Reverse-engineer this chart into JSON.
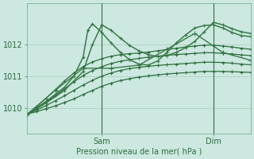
{
  "xlabel": "Pression niveau de la mer( hPa )",
  "bg_color": "#cce8e0",
  "grid_color": "#a8ccbc",
  "line_color_dark": "#2d6e3e",
  "line_color_mid": "#3a7a4a",
  "ylim": [
    1009.2,
    1013.3
  ],
  "xlim": [
    0,
    48
  ],
  "x_ticks": [
    16,
    40
  ],
  "x_tick_labels": [
    "Sam",
    "Dim"
  ],
  "y_ticks": [
    1010,
    1011,
    1012
  ],
  "vlines": [
    16,
    40
  ],
  "series": [
    {
      "x": [
        0,
        2,
        4,
        6,
        8,
        10,
        12,
        14,
        16,
        18,
        20,
        22,
        24,
        26,
        28,
        30,
        32,
        34,
        36,
        38,
        40,
        42,
        44,
        46,
        48
      ],
      "y": [
        1009.8,
        1009.88,
        1009.97,
        1010.06,
        1010.17,
        1010.28,
        1010.42,
        1010.55,
        1010.68,
        1010.78,
        1010.86,
        1010.92,
        1010.97,
        1011.01,
        1011.04,
        1011.07,
        1011.09,
        1011.11,
        1011.13,
        1011.15,
        1011.15,
        1011.15,
        1011.14,
        1011.13,
        1011.12
      ],
      "lw": 0.9,
      "dense": true
    },
    {
      "x": [
        0,
        2,
        4,
        6,
        8,
        10,
        12,
        14,
        16,
        18,
        20,
        22,
        24,
        26,
        28,
        30,
        32,
        34,
        36,
        38,
        40,
        42,
        44,
        46,
        48
      ],
      "y": [
        1009.8,
        1009.93,
        1010.07,
        1010.22,
        1010.38,
        1010.55,
        1010.72,
        1010.87,
        1011.0,
        1011.1,
        1011.18,
        1011.24,
        1011.28,
        1011.31,
        1011.34,
        1011.36,
        1011.38,
        1011.4,
        1011.42,
        1011.44,
        1011.44,
        1011.43,
        1011.41,
        1011.38,
        1011.36
      ],
      "lw": 0.9,
      "dense": true
    },
    {
      "x": [
        0,
        2,
        4,
        6,
        8,
        10,
        12,
        14,
        16,
        18,
        20,
        22,
        24,
        26,
        28,
        30,
        32,
        34,
        36,
        38,
        40,
        42,
        44,
        46,
        48
      ],
      "y": [
        1009.8,
        1009.98,
        1010.18,
        1010.38,
        1010.6,
        1010.82,
        1011.02,
        1011.18,
        1011.3,
        1011.4,
        1011.47,
        1011.52,
        1011.56,
        1011.6,
        1011.63,
        1011.66,
        1011.68,
        1011.7,
        1011.72,
        1011.74,
        1011.74,
        1011.72,
        1011.7,
        1011.67,
        1011.65
      ],
      "lw": 0.9,
      "dense": true
    },
    {
      "x": [
        0,
        2,
        4,
        6,
        8,
        10,
        12,
        14,
        16,
        18,
        20,
        22,
        24,
        26,
        28,
        30,
        32,
        34,
        36,
        38,
        40,
        42,
        44,
        46,
        48
      ],
      "y": [
        1009.8,
        1010.04,
        1010.3,
        1010.57,
        1010.85,
        1011.1,
        1011.3,
        1011.45,
        1011.55,
        1011.63,
        1011.68,
        1011.71,
        1011.73,
        1011.76,
        1011.8,
        1011.84,
        1011.88,
        1011.92,
        1011.95,
        1011.98,
        1011.98,
        1011.95,
        1011.92,
        1011.88,
        1011.85
      ],
      "lw": 0.9,
      "dense": true
    },
    {
      "x": [
        0,
        6,
        12,
        18,
        24,
        30,
        36,
        42,
        48
      ],
      "y": [
        1009.8,
        1010.55,
        1011.25,
        1011.25,
        1011.35,
        1011.85,
        1012.35,
        1011.75,
        1011.5
      ],
      "lw": 1.0,
      "dense": false
    },
    {
      "x": [
        0,
        4,
        8,
        12,
        14,
        16,
        18,
        20,
        22,
        24,
        26,
        28,
        30,
        32,
        34,
        36,
        38,
        40,
        42,
        44,
        46,
        48
      ],
      "y": [
        1009.8,
        1010.15,
        1010.55,
        1011.15,
        1012.0,
        1012.62,
        1012.45,
        1012.2,
        1011.97,
        1011.8,
        1011.68,
        1011.62,
        1011.65,
        1011.75,
        1011.9,
        1012.1,
        1012.4,
        1012.7,
        1012.62,
        1012.5,
        1012.4,
        1012.35
      ],
      "lw": 1.1,
      "dense": true
    },
    {
      "x": [
        0,
        4,
        8,
        10,
        12,
        13,
        14,
        16,
        18,
        20,
        22,
        24,
        26,
        28,
        30,
        32,
        34,
        36,
        38,
        40,
        42,
        44,
        46,
        48
      ],
      "y": [
        1009.8,
        1010.2,
        1010.65,
        1011.0,
        1011.6,
        1012.45,
        1012.65,
        1012.38,
        1012.05,
        1011.75,
        1011.52,
        1011.38,
        1011.35,
        1011.48,
        1011.75,
        1012.05,
        1012.3,
        1012.52,
        1012.6,
        1012.62,
        1012.52,
        1012.38,
        1012.28,
        1012.25
      ],
      "lw": 1.1,
      "dense": true
    }
  ]
}
